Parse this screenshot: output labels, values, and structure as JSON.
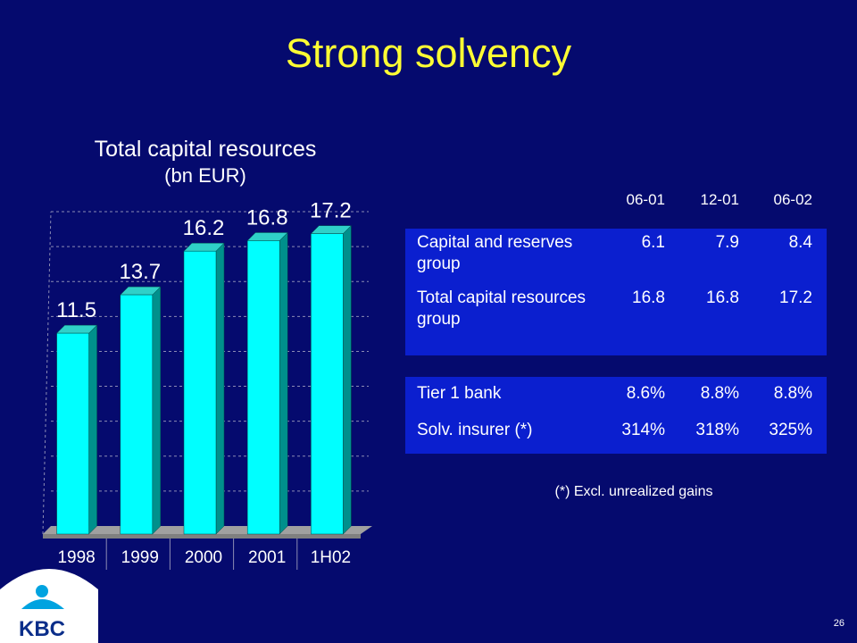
{
  "slide": {
    "title": "Strong solvency",
    "page_number": "26",
    "footnote": "(*) Excl. unrealized gains",
    "logo_text": "KBC"
  },
  "chart_data": {
    "type": "bar",
    "title": "Total capital resources",
    "subtitle": "(bn EUR)",
    "categories": [
      "1998",
      "1999",
      "2000",
      "2001",
      "1H02"
    ],
    "values": [
      11.5,
      13.7,
      16.2,
      16.8,
      17.2
    ],
    "data_labels": [
      "11.5",
      "13.7",
      "16.2",
      "16.8",
      "17.2"
    ],
    "ylim": [
      0,
      18
    ],
    "grid": true,
    "bar_color": "#00ffff",
    "bar_side_color": "#00908c"
  },
  "table": {
    "columns": [
      "06-01",
      "12-01",
      "06-02"
    ],
    "rows": [
      {
        "label": "Capital and reserves group",
        "values": [
          "6.1",
          "7.9",
          "8.4"
        ]
      },
      {
        "label": "Total capital resources group",
        "values": [
          "16.8",
          "16.8",
          "17.2"
        ]
      },
      {
        "label": "Tier 1 bank",
        "values": [
          "8.6%",
          "8.8%",
          "8.8%"
        ]
      },
      {
        "label": "Solv. insurer (*)",
        "values": [
          "314%",
          "318%",
          "325%"
        ]
      }
    ]
  },
  "colors": {
    "background": "#050a6e",
    "title": "#ffff33",
    "panel": "#0b1fcf"
  }
}
